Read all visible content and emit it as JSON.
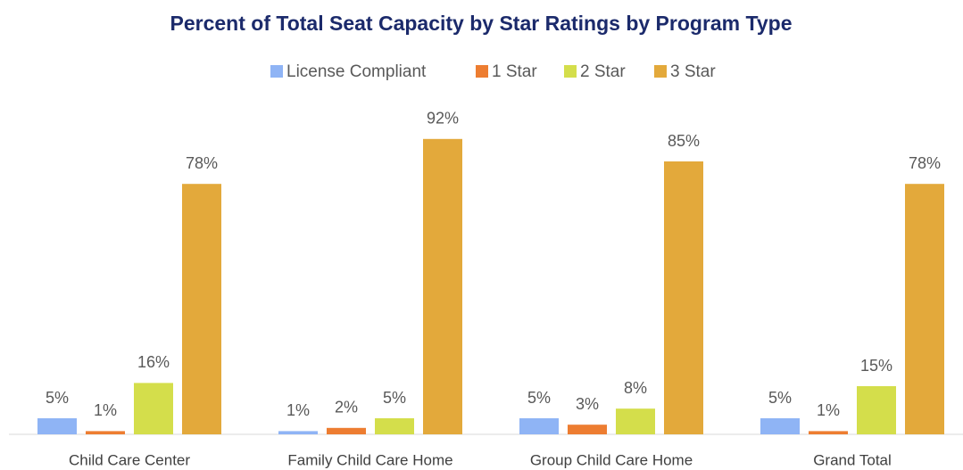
{
  "chart_data": {
    "type": "bar",
    "title": "Percent of Total Seat Capacity by Star Ratings by Program Type",
    "categories": [
      "Child Care Center",
      "Family Child Care Home",
      "Group Child Care Home",
      "Grand Total"
    ],
    "series": [
      {
        "name": "License Compliant",
        "color": "#8fb4f5",
        "values": [
          5,
          1,
          5,
          5
        ],
        "value_labels": [
          "5%",
          "1%",
          "5%",
          "5%"
        ]
      },
      {
        "name": "1 Star",
        "color": "#ed7d31",
        "values": [
          1,
          2,
          3,
          1
        ],
        "value_labels": [
          "1%",
          "2%",
          "3%",
          "1%"
        ]
      },
      {
        "name": "2 Star",
        "color": "#d4de4b",
        "values": [
          16,
          5,
          8,
          15
        ],
        "value_labels": [
          "16%",
          "5%",
          "8%",
          "15%"
        ]
      },
      {
        "name": "3 Star",
        "color": "#e3a93b",
        "values": [
          78,
          92,
          85,
          78
        ],
        "value_labels": [
          "78%",
          "92%",
          "85%",
          "78%"
        ]
      }
    ],
    "legend": "top"
  }
}
